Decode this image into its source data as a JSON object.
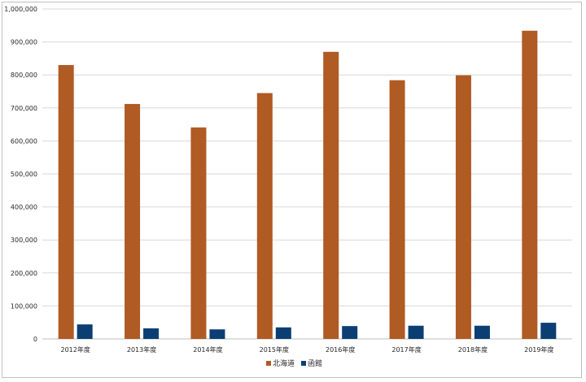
{
  "chart_data": {
    "type": "bar",
    "categories": [
      "2012年度",
      "2013年度",
      "2014年度",
      "2015年度",
      "2016年度",
      "2017年度",
      "2018年度",
      "2019年度"
    ],
    "series": [
      {
        "name": "北海道",
        "color": "#b05a24",
        "values": [
          830000,
          712000,
          641000,
          745000,
          870000,
          784000,
          799000,
          934000
        ]
      },
      {
        "name": "函館",
        "color": "#0b3f73",
        "values": [
          44000,
          32000,
          29000,
          35000,
          39000,
          40000,
          40000,
          49000
        ]
      }
    ],
    "y_ticks": [
      "0",
      "100,000",
      "200,000",
      "300,000",
      "400,000",
      "500,000",
      "600,000",
      "700,000",
      "800,000",
      "900,000",
      "1,000,000"
    ],
    "ylim": [
      0,
      1000000
    ],
    "grid": true,
    "legend_position": "bottom"
  }
}
